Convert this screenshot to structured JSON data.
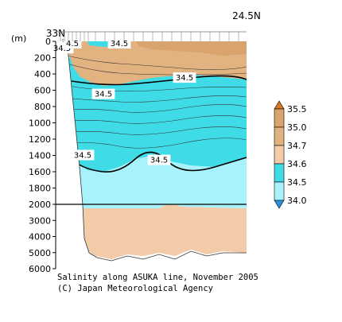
{
  "chart_data": {
    "type": "heatmap",
    "title": "Salinity along ASUKA line, November 2005",
    "credit": "(C) Japan Meteorological Agency",
    "x_axis": {
      "left_label": "33N",
      "right_label": "24.5N"
    },
    "y_axis": {
      "unit_label": "(m)",
      "upper_ticks": [
        "0",
        "200",
        "400",
        "600",
        "800",
        "1000",
        "1200",
        "1400",
        "1600",
        "1800",
        "2000"
      ],
      "lower_ticks": [
        "3000",
        "4000",
        "5000",
        "6000"
      ],
      "upper_range": [
        0,
        2000
      ],
      "lower_range": [
        2000,
        6000
      ],
      "split_depth": 2000
    },
    "colorbar": {
      "ticks": [
        "34.0",
        "34.5",
        "34.6",
        "34.7",
        "35.0",
        "35.5"
      ],
      "levels": [
        {
          "range": "<34.0",
          "color": "#2b8fe0"
        },
        {
          "range": "34.0-34.5",
          "color": "#a8f3fb"
        },
        {
          "range": "34.5-34.6",
          "color": "#3fdce8"
        },
        {
          "range": "34.6-34.7",
          "color": "#f3cba9"
        },
        {
          "range": "34.7-35.0",
          "color": "#e2b381"
        },
        {
          "range": "35.0-35.5",
          "color": "#d8a36d"
        },
        {
          "range": ">35.5",
          "color": "#d87a22"
        }
      ]
    },
    "contour_labels": [
      {
        "text": "34.5",
        "depth": 20
      },
      {
        "text": "34.5",
        "depth": 5
      },
      {
        "text": "34.5",
        "depth": 440
      },
      {
        "text": "34.5",
        "depth": 640
      },
      {
        "text": "34.5",
        "depth": 1450
      },
      {
        "text": "34.5",
        "depth": 1390
      },
      {
        "text": "34.5",
        "depth": 80
      },
      {
        "text": "4.5",
        "depth": 20
      }
    ]
  }
}
